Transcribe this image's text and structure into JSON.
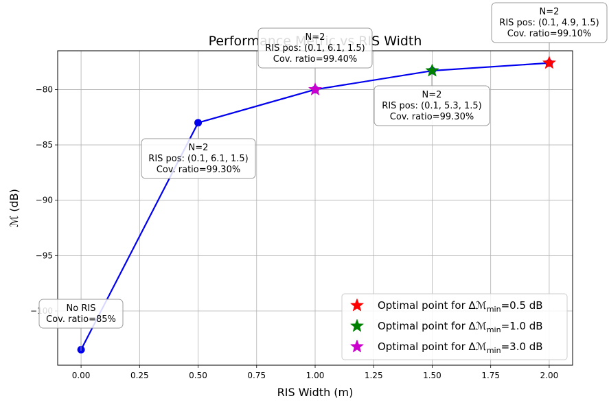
{
  "chart_data": {
    "type": "line",
    "title": "Performance Metric vs RIS Width",
    "xlabel": "RIS Width (m)",
    "ylabel": "ℳ (dB)",
    "xlim": [
      -0.1,
      2.1
    ],
    "ylim": [
      -104.9,
      -76.5
    ],
    "x_ticks": [
      "0.00",
      "0.25",
      "0.50",
      "0.75",
      "1.00",
      "1.25",
      "1.50",
      "1.75",
      "2.00"
    ],
    "y_ticks": [
      "−80",
      "−85",
      "−90",
      "−95",
      "−100"
    ],
    "grid": true,
    "legend_position": "lower-right",
    "series": [
      {
        "color": "#0000ee",
        "x": [
          0.0,
          0.5,
          1.0,
          1.5,
          2.0
        ],
        "y": [
          -103.5,
          -83.0,
          -80.0,
          -78.3,
          -77.6
        ]
      }
    ],
    "optimal_points": [
      {
        "x": 2.0,
        "y": -77.6,
        "color": "#ff0000"
      },
      {
        "x": 1.5,
        "y": -78.3,
        "color": "#008000"
      },
      {
        "x": 1.0,
        "y": -80.0,
        "color": "#cc00cc"
      }
    ],
    "legend": [
      {
        "prefix": "Optimal point for Δ",
        "sub": "min",
        "suffix": "=0.5 dB",
        "color": "#ff0000"
      },
      {
        "prefix": "Optimal point for Δ",
        "sub": "min",
        "suffix": "=1.0 dB",
        "color": "#008000"
      },
      {
        "prefix": "Optimal point for Δ",
        "sub": "min",
        "suffix": "=3.0 dB",
        "color": "#cc00cc"
      }
    ],
    "annotations": [
      {
        "lines": [
          "No RIS",
          "Cov. ratio=85%"
        ]
      },
      {
        "lines": [
          "N=2",
          "RIS pos: (0.1, 6.1, 1.5)",
          "Cov. ratio=99.30%"
        ]
      },
      {
        "lines": [
          "N=2",
          "RIS pos: (0.1, 6.1, 1.5)",
          "Cov. ratio=99.40%"
        ]
      },
      {
        "lines": [
          "N=2",
          "RIS pos: (0.1, 5.3, 1.5)",
          "Cov. ratio=99.30%"
        ]
      },
      {
        "lines": [
          "N=2",
          "RIS pos: (0.1, 4.9, 1.5)",
          "Cov. ratio=99.10%"
        ]
      }
    ]
  }
}
